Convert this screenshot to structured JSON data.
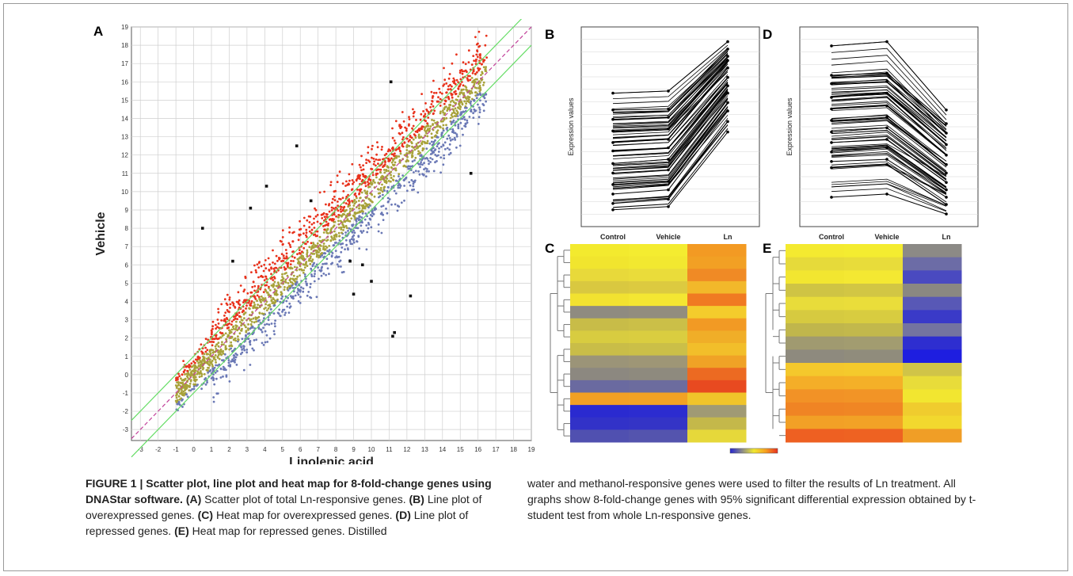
{
  "figure": {
    "panel_labels": {
      "a": "A",
      "b": "B",
      "c": "C",
      "d": "D",
      "e": "E"
    }
  },
  "chart_data": [
    {
      "panel": "A",
      "type": "scatter",
      "xlabel": "Linolenic acid",
      "ylabel": "Vehicle",
      "xlim": [
        -3.5,
        19
      ],
      "ylim": [
        -3.6,
        19
      ],
      "x_ticks": [
        -3,
        -2,
        -1,
        0,
        1,
        2,
        3,
        4,
        5,
        6,
        7,
        8,
        9,
        10,
        11,
        12,
        13,
        14,
        15,
        16,
        17,
        18,
        19
      ],
      "y_ticks": [
        -3,
        -2,
        -1,
        0,
        1,
        2,
        3,
        4,
        5,
        6,
        7,
        8,
        9,
        10,
        11,
        12,
        13,
        14,
        15,
        16,
        17,
        18,
        19
      ],
      "grid": true,
      "series_colors": {
        "up": "#e8321c",
        "mid": "#a8a23a",
        "down": "#6a78b5",
        "black": "#111111"
      },
      "lines": [
        {
          "kind": "identity",
          "color": "#c2429a",
          "style": "dashed"
        },
        {
          "kind": "upper-threshold",
          "color": "#66dd66",
          "offset": 1
        },
        {
          "kind": "lower-threshold",
          "color": "#66dd66",
          "offset": -1
        }
      ],
      "highlighted_points": [
        {
          "x": 11.1,
          "y": 16.0
        },
        {
          "x": 15.6,
          "y": 11.0
        },
        {
          "x": 11.3,
          "y": 2.3
        },
        {
          "x": 11.2,
          "y": 2.1
        },
        {
          "x": 0.5,
          "y": 8.0
        },
        {
          "x": 5.8,
          "y": 12.5
        },
        {
          "x": 9.0,
          "y": 4.4
        },
        {
          "x": 12.2,
          "y": 4.3
        },
        {
          "x": 10.0,
          "y": 5.1
        },
        {
          "x": 4.1,
          "y": 10.3
        },
        {
          "x": 3.2,
          "y": 9.1
        },
        {
          "x": 9.5,
          "y": 6.0
        },
        {
          "x": 8.8,
          "y": 6.2
        },
        {
          "x": 2.2,
          "y": 6.2
        },
        {
          "x": 6.6,
          "y": 9.5
        }
      ]
    },
    {
      "panel": "B",
      "type": "line",
      "categories": [
        "Control",
        "Vehicle",
        "Ln"
      ],
      "ylabel": "Expression values",
      "line_color": "#000000",
      "trend": "overexpressed",
      "example_series": [
        [
          11.7,
          11.9,
          16.6
        ],
        [
          10.1,
          10.2,
          15.9
        ],
        [
          9.2,
          9.4,
          15.2
        ],
        [
          8.1,
          8.3,
          14.8
        ],
        [
          7.0,
          7.3,
          14.1
        ],
        [
          6.2,
          6.5,
          13.2
        ],
        [
          5.0,
          5.4,
          12.4
        ],
        [
          4.1,
          4.4,
          11.7
        ],
        [
          3.0,
          3.3,
          10.8
        ],
        [
          2.1,
          2.5,
          10.0
        ],
        [
          1.2,
          1.6,
          9.0
        ],
        [
          0.6,
          0.9,
          8.0
        ]
      ]
    },
    {
      "panel": "D",
      "type": "line",
      "categories": [
        "Control",
        "Vehicle",
        "Ln"
      ],
      "ylabel": "Expression values",
      "line_color": "#000000",
      "trend": "repressed",
      "example_series": [
        [
          16.2,
          16.6,
          10.1
        ],
        [
          13.4,
          13.6,
          8.8
        ],
        [
          12.6,
          12.8,
          7.9
        ],
        [
          11.3,
          11.7,
          6.8
        ],
        [
          10.2,
          10.5,
          5.8
        ],
        [
          9.1,
          9.4,
          4.9
        ],
        [
          8.0,
          8.4,
          4.1
        ],
        [
          7.0,
          7.3,
          3.2
        ],
        [
          6.1,
          6.5,
          2.5
        ],
        [
          5.2,
          5.4,
          1.8
        ],
        [
          4.6,
          4.9,
          1.1
        ],
        [
          1.8,
          2.1,
          0.2
        ]
      ]
    },
    {
      "panel": "C",
      "type": "heatmap",
      "columns": [
        "Control",
        "Vehicle",
        "Ln"
      ],
      "colormap": [
        "#2424d0",
        "#8a8a8a",
        "#f0e830",
        "#f7a020",
        "#e83020"
      ],
      "rows": [
        [
          "#f3ea2e",
          "#f4ec30",
          "#f39a23"
        ],
        [
          "#f1e52e",
          "#f2e830",
          "#f2a024"
        ],
        [
          "#e8d93a",
          "#eadc3a",
          "#f08a25"
        ],
        [
          "#d9c840",
          "#dcca40",
          "#f2b82a"
        ],
        [
          "#f2e230",
          "#f4e632",
          "#f07a22"
        ],
        [
          "#8f8b80",
          "#928d7e",
          "#f4cc2c"
        ],
        [
          "#c8bc48",
          "#cbbf48",
          "#f29a24"
        ],
        [
          "#d8cc40",
          "#dacd40",
          "#f0ae28"
        ],
        [
          "#c9bd48",
          "#cbbf48",
          "#f2be2a"
        ],
        [
          "#9b9478",
          "#9e9676",
          "#f0a226"
        ],
        [
          "#8c8880",
          "#8e8a7e",
          "#ec6a22"
        ],
        [
          "#6a6aa0",
          "#6c6c9e",
          "#e84a20"
        ],
        [
          "#f2a024",
          "#f2a224",
          "#f0c42a"
        ],
        [
          "#2a2ad0",
          "#2c2cd0",
          "#a09a74"
        ],
        [
          "#3232c8",
          "#3434c6",
          "#c4b84a"
        ],
        [
          "#5050b0",
          "#5454ae",
          "#e6d83a"
        ]
      ]
    },
    {
      "panel": "E",
      "type": "heatmap",
      "columns": [
        "Control",
        "Vehicle",
        "Ln"
      ],
      "colormap": [
        "#2424d0",
        "#8a8a8a",
        "#f0e830",
        "#f7a020",
        "#e83020"
      ],
      "rows": [
        [
          "#f4ea30",
          "#f4ec30",
          "#8c8a86"
        ],
        [
          "#e6da3a",
          "#e8dc3a",
          "#6c6ca6"
        ],
        [
          "#f2e630",
          "#f4e832",
          "#4a4ac0"
        ],
        [
          "#cfc444",
          "#d2c644",
          "#8a8882"
        ],
        [
          "#e8dc3a",
          "#eadd3a",
          "#5858b6"
        ],
        [
          "#d6ca40",
          "#d8cc40",
          "#3a3ac8"
        ],
        [
          "#c0b64c",
          "#c2b84c",
          "#7474a0"
        ],
        [
          "#a09a70",
          "#a29c70",
          "#2e2ed0"
        ],
        [
          "#8e8a7e",
          "#908c7c",
          "#1e1ee0"
        ],
        [
          "#f4c82c",
          "#f4ca2c",
          "#d0c448"
        ],
        [
          "#f4ae28",
          "#f4b028",
          "#e8dc3a"
        ],
        [
          "#f29226",
          "#f29426",
          "#f2e630"
        ],
        [
          "#f08424",
          "#f08624",
          "#f0cc2e"
        ],
        [
          "#f2a026",
          "#f2a226",
          "#f2d82e"
        ],
        [
          "#ee6022",
          "#ee6222",
          "#f09e26"
        ]
      ]
    }
  ],
  "caption": {
    "label": "FIGURE 1 | Scatter plot, line plot and heat map for 8-fold-change genes using DNAStar software.",
    "a_ref": "(A)",
    "a_text": " Scatter plot of total Ln-responsive genes. ",
    "b_ref": "(B)",
    "b_text": " Line plot of overexpressed genes. ",
    "c_ref": "(C)",
    "c_text": " Heat map for overexpressed genes. ",
    "d_ref": "(D)",
    "d_text": " Line plot of repressed genes. ",
    "e_ref": "(E)",
    "e_text": " Heat map for repressed genes. Distilled",
    "right_text": "water and methanol-responsive genes were used to filter the results of Ln treatment. All graphs show 8-fold-change genes with 95% significant differential expression obtained by t-student test from whole Ln-responsive genes."
  }
}
